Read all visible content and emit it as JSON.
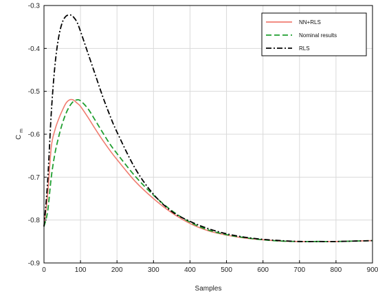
{
  "chart_data": {
    "type": "line",
    "title": "",
    "xlabel": "Samples",
    "ylabel": "C",
    "ylabel_subscript": "m",
    "xlim": [
      0,
      900
    ],
    "ylim": [
      -0.9,
      -0.3
    ],
    "x_ticks": [
      0,
      100,
      200,
      300,
      400,
      500,
      600,
      700,
      800,
      900
    ],
    "y_ticks": [
      -0.9,
      -0.8,
      -0.7,
      -0.6,
      -0.5,
      -0.4,
      -0.3
    ],
    "grid": true,
    "legend_position": "top-right",
    "series": [
      {
        "name": "NN+RLS",
        "color": "#f07c70",
        "style": "solid",
        "x": [
          0,
          10,
          20,
          30,
          40,
          50,
          60,
          70,
          80,
          90,
          100,
          120,
          140,
          160,
          180,
          200,
          250,
          300,
          350,
          400,
          450,
          500,
          550,
          600,
          650,
          700,
          750,
          800,
          850,
          900
        ],
        "y": [
          -0.815,
          -0.74,
          -0.63,
          -0.59,
          -0.565,
          -0.545,
          -0.528,
          -0.52,
          -0.52,
          -0.527,
          -0.535,
          -0.56,
          -0.587,
          -0.613,
          -0.637,
          -0.659,
          -0.71,
          -0.75,
          -0.783,
          -0.808,
          -0.825,
          -0.835,
          -0.842,
          -0.846,
          -0.849,
          -0.85,
          -0.85,
          -0.85,
          -0.849,
          -0.848
        ]
      },
      {
        "name": "Nominal results",
        "color": "#1f9e2f",
        "style": "dashed",
        "x": [
          0,
          10,
          20,
          30,
          40,
          50,
          60,
          70,
          80,
          90,
          100,
          120,
          140,
          160,
          180,
          200,
          250,
          300,
          350,
          400,
          450,
          500,
          550,
          600,
          650,
          700,
          750,
          800,
          850,
          900
        ],
        "y": [
          -0.815,
          -0.78,
          -0.7,
          -0.645,
          -0.607,
          -0.576,
          -0.552,
          -0.535,
          -0.524,
          -0.52,
          -0.522,
          -0.54,
          -0.567,
          -0.595,
          -0.622,
          -0.645,
          -0.698,
          -0.742,
          -0.778,
          -0.805,
          -0.823,
          -0.834,
          -0.841,
          -0.846,
          -0.849,
          -0.85,
          -0.85,
          -0.85,
          -0.849,
          -0.848
        ]
      },
      {
        "name": "RLS",
        "color": "#000000",
        "style": "dashdot",
        "x": [
          0,
          10,
          20,
          30,
          40,
          50,
          60,
          70,
          75,
          80,
          90,
          100,
          120,
          140,
          160,
          180,
          200,
          250,
          300,
          350,
          400,
          450,
          500,
          550,
          600,
          650,
          700,
          750,
          800,
          850,
          900
        ],
        "y": [
          -0.815,
          -0.71,
          -0.55,
          -0.44,
          -0.375,
          -0.34,
          -0.325,
          -0.322,
          -0.323,
          -0.326,
          -0.338,
          -0.36,
          -0.41,
          -0.46,
          -0.51,
          -0.555,
          -0.595,
          -0.68,
          -0.74,
          -0.78,
          -0.803,
          -0.82,
          -0.832,
          -0.84,
          -0.845,
          -0.848,
          -0.85,
          -0.85,
          -0.85,
          -0.849,
          -0.848
        ]
      }
    ]
  }
}
